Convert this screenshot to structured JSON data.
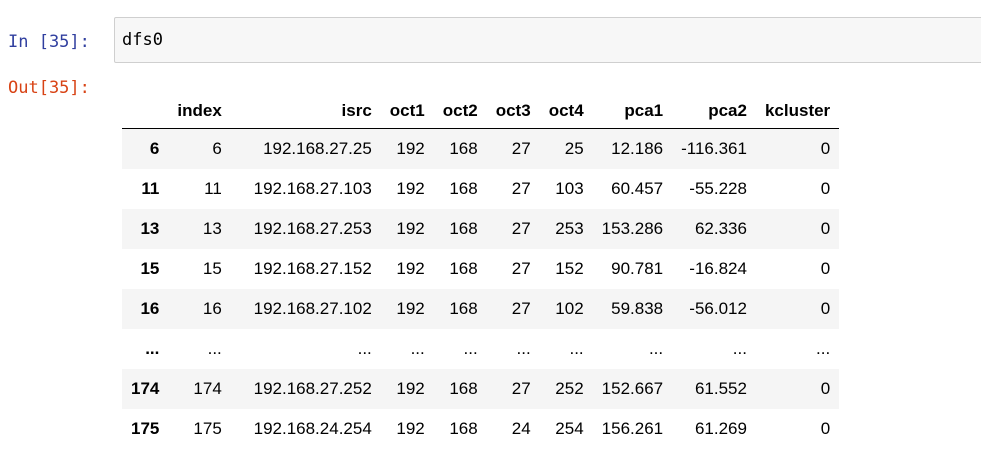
{
  "cell": {
    "in_prompt": "In [35]:",
    "code": "dfs0",
    "out_prompt": "Out[35]:"
  },
  "table": {
    "columns": [
      "",
      "index",
      "isrc",
      "oct1",
      "oct2",
      "oct3",
      "oct4",
      "pca1",
      "pca2",
      "kcluster"
    ],
    "rows": [
      {
        "label": "6",
        "cells": [
          "6",
          "192.168.27.25",
          "192",
          "168",
          "27",
          "25",
          "12.186",
          "-116.361",
          "0"
        ]
      },
      {
        "label": "11",
        "cells": [
          "11",
          "192.168.27.103",
          "192",
          "168",
          "27",
          "103",
          "60.457",
          "-55.228",
          "0"
        ]
      },
      {
        "label": "13",
        "cells": [
          "13",
          "192.168.27.253",
          "192",
          "168",
          "27",
          "253",
          "153.286",
          "62.336",
          "0"
        ]
      },
      {
        "label": "15",
        "cells": [
          "15",
          "192.168.27.152",
          "192",
          "168",
          "27",
          "152",
          "90.781",
          "-16.824",
          "0"
        ]
      },
      {
        "label": "16",
        "cells": [
          "16",
          "192.168.27.102",
          "192",
          "168",
          "27",
          "102",
          "59.838",
          "-56.012",
          "0"
        ]
      },
      {
        "label": "...",
        "cells": [
          "...",
          "...",
          "...",
          "...",
          "...",
          "...",
          "...",
          "...",
          "..."
        ]
      },
      {
        "label": "174",
        "cells": [
          "174",
          "192.168.27.252",
          "192",
          "168",
          "27",
          "252",
          "152.667",
          "61.552",
          "0"
        ]
      },
      {
        "label": "175",
        "cells": [
          "175",
          "192.168.24.254",
          "192",
          "168",
          "24",
          "254",
          "156.261",
          "61.269",
          "0"
        ]
      }
    ]
  }
}
